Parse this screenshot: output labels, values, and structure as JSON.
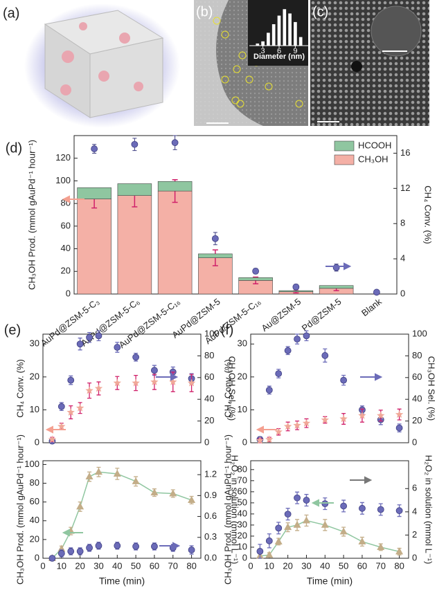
{
  "panels": [
    "(a)",
    "(b)",
    "(c)"
  ],
  "chart_data": [
    {
      "type": "histogram",
      "x": [
        2,
        3,
        4,
        5,
        6,
        7,
        8,
        9,
        10
      ],
      "values": [
        1,
        2,
        6,
        10,
        14,
        17,
        15,
        11,
        4
      ],
      "color": "#ffffff",
      "xlim": [
        1,
        11
      ],
      "xticks": [
        3,
        6,
        9
      ],
      "xlabel": "Diameter (nm)"
    },
    {
      "type": "bar",
      "title": "(d)",
      "stacked": true,
      "legend": "upper right",
      "categories": [
        "AuPd@ZSM-5-C₃",
        "AuPd@ZSM-5-C₆",
        "AuPd@ZSM-5-C₁₆",
        "AuPd@ZSM-5",
        "AuPd/ZSM-5-C₁₆",
        "Au@ZSM-5",
        "Pd@ZSM-5",
        "Blank"
      ],
      "ylabel": "CH₃OH Prod. (mmol gAuPd⁻¹ hour⁻¹)",
      "ylim": [
        0,
        140
      ],
      "yticks": [
        0,
        20,
        40,
        60,
        80,
        100,
        120
      ],
      "y2label": "CH₄ Conv. (%)",
      "y2lim": [
        0,
        18
      ],
      "y2ticks": [
        0,
        4,
        8,
        12,
        16
      ],
      "series": [
        {
          "name": "CH₃OH",
          "color": "#f4b0a6",
          "error_color": "#d0206a",
          "values": [
            84,
            87,
            91,
            32,
            12,
            2,
            5,
            0
          ],
          "errors": [
            8,
            10,
            10,
            7,
            3,
            1,
            2,
            0
          ]
        },
        {
          "name": "HCOOH",
          "color": "#8fc6a0",
          "values": [
            10,
            10.5,
            8.5,
            3.5,
            2.5,
            1,
            2.5,
            0
          ]
        },
        {
          "marker": "circle",
          "color": "#6b6bb8",
          "axis": "y2",
          "values": [
            16.5,
            17,
            17.2,
            6.3,
            2.6,
            0.8,
            3,
            0.2
          ],
          "errors": [
            0.5,
            0.7,
            0.8,
            0.7,
            0.3,
            0.3,
            0.4,
            0.1
          ]
        }
      ]
    },
    {
      "type": "scatter",
      "title": "(e)",
      "x": [
        5,
        10,
        15,
        20,
        25,
        30,
        40,
        50,
        60,
        70,
        80
      ],
      "xlim": [
        0,
        85
      ],
      "ylabel": "CH₄ Conv. (%)",
      "ylim": [
        0,
        33
      ],
      "yticks": [
        0,
        10,
        20,
        30
      ],
      "y2label": "CH₃OH Sel. (%)",
      "y2lim": [
        0,
        100
      ],
      "y2ticks": [
        0,
        20,
        40,
        60,
        80,
        100
      ],
      "series": [
        {
          "marker": "circle",
          "color": "#6b6bb8",
          "values": [
            0.5,
            11,
            19,
            30,
            32,
            32.5,
            29,
            26,
            22,
            21.5,
            19.5
          ],
          "errors": [
            0.5,
            1.2,
            1.3,
            1.8,
            1.5,
            1.5,
            1.5,
            1.2,
            1.5,
            1.5,
            1.5
          ]
        },
        {
          "marker": "star",
          "color": "#f0a898",
          "error_color": "#d0206a",
          "axis": "y2",
          "values": [
            3,
            15,
            28,
            32,
            48,
            50,
            55,
            55,
            56,
            56,
            55
          ],
          "errors": [
            2,
            3,
            6,
            5,
            7,
            6,
            6,
            7,
            7,
            9,
            8
          ]
        }
      ]
    },
    {
      "type": "scatter",
      "x": [
        5,
        10,
        15,
        20,
        25,
        30,
        40,
        50,
        60,
        70,
        80
      ],
      "xlim": [
        0,
        85
      ],
      "xticks": [
        0,
        10,
        20,
        30,
        40,
        50,
        60,
        70,
        80
      ],
      "xlabel": "Time (min)",
      "ylabel": "CH₃OH Prod. (mmol gAuPd⁻¹ hour⁻¹)",
      "ylim": [
        0,
        104
      ],
      "yticks": [
        0,
        20,
        40,
        60,
        80,
        100
      ],
      "y2label": "H₂O₂ in solution (mmol L⁻¹)",
      "y2lim": [
        0,
        1.4
      ],
      "y2ticks": [
        {
          "value": 0,
          "label": "0.0"
        },
        {
          "value": 0.3,
          "label": "0.3"
        },
        {
          "value": 0.6,
          "label": "0.6"
        },
        {
          "value": 0.9,
          "label": "0.9"
        },
        {
          "value": 1.2,
          "label": "1.2"
        }
      ],
      "series": [
        {
          "marker": "triangle",
          "color": "#c3ad88",
          "line_color": "#8fc6a0",
          "values": [
            0,
            10,
            29,
            55,
            87,
            92,
            90,
            82,
            70,
            69,
            62
          ],
          "errors": [
            2,
            3,
            4,
            5,
            5,
            5,
            6,
            5,
            4,
            4,
            4
          ]
        },
        {
          "marker": "circle",
          "color": "#6b6bb8",
          "axis": "y2",
          "values": [
            0,
            0.07,
            0.1,
            0.1,
            0.15,
            0.18,
            0.18,
            0.17,
            0.17,
            0.15,
            0.12
          ],
          "errors": [
            0.03,
            0.05,
            0.05,
            0.05,
            0.05,
            0.05,
            0.05,
            0.05,
            0.05,
            0.05,
            0.06
          ]
        }
      ]
    },
    {
      "type": "scatter",
      "title": "(f)",
      "x": [
        5,
        10,
        15,
        20,
        25,
        30,
        40,
        50,
        60,
        70,
        80
      ],
      "xlim": [
        0,
        85
      ],
      "ylabel": "CH₄ Conv. (%)",
      "ylim": [
        0,
        33
      ],
      "yticks": [
        0,
        10,
        20,
        30
      ],
      "y2label": "CH₃OH Sel. (%)",
      "y2lim": [
        0,
        100
      ],
      "y2ticks": [
        0,
        20,
        40,
        60,
        80,
        100
      ],
      "series": [
        {
          "marker": "circle",
          "color": "#6b6bb8",
          "values": [
            1,
            16,
            21,
            28,
            31.5,
            32.5,
            26.5,
            19,
            10,
            7,
            4.5
          ],
          "errors": [
            0.8,
            1.2,
            1.3,
            1.2,
            1.5,
            1.5,
            2,
            1.5,
            1.2,
            1.5,
            1.2
          ]
        },
        {
          "marker": "star",
          "color": "#f0a898",
          "error_color": "#d0206a",
          "axis": "y2",
          "values": [
            2,
            3,
            10,
            15,
            16,
            18,
            21,
            22,
            25,
            25,
            26
          ],
          "errors": [
            2,
            2,
            3,
            4,
            4,
            4,
            3,
            5,
            6,
            5,
            5
          ]
        }
      ]
    },
    {
      "type": "scatter",
      "x": [
        5,
        10,
        15,
        20,
        25,
        30,
        40,
        50,
        60,
        70,
        80
      ],
      "xlim": [
        0,
        85
      ],
      "xticks": [
        0,
        10,
        20,
        30,
        40,
        50,
        60,
        70,
        80
      ],
      "xlabel": "Time (min)",
      "ylabel": "CH₃OH Prod. (mmol gAuPd⁻¹ hour⁻¹)",
      "ylim": [
        0,
        88
      ],
      "yticks": [
        0,
        10,
        20,
        30,
        40,
        50,
        60,
        70,
        80
      ],
      "y2label": "H₂O₂ in solution (mmol L⁻¹)",
      "y2lim": [
        0,
        8.4
      ],
      "y2ticks": [
        0,
        2,
        4,
        6
      ],
      "series": [
        {
          "marker": "triangle",
          "color": "#c3ad88",
          "line_color": "#8fc6a0",
          "values": [
            2,
            3,
            15,
            28,
            30,
            34,
            30,
            24,
            15,
            10,
            6
          ],
          "errors": [
            2,
            2,
            3,
            4,
            5,
            5,
            5,
            4,
            4,
            3,
            3
          ]
        },
        {
          "marker": "circle",
          "color": "#6b6bb8",
          "axis": "y2",
          "values": [
            0.6,
            1.5,
            2.6,
            3.8,
            5.2,
            5.0,
            4.7,
            4.5,
            4.3,
            4.2,
            4.1
          ],
          "errors": [
            0.6,
            0.6,
            0.5,
            0.5,
            0.5,
            0.5,
            0.5,
            0.5,
            0.5,
            0.5,
            0.5
          ]
        }
      ]
    }
  ]
}
